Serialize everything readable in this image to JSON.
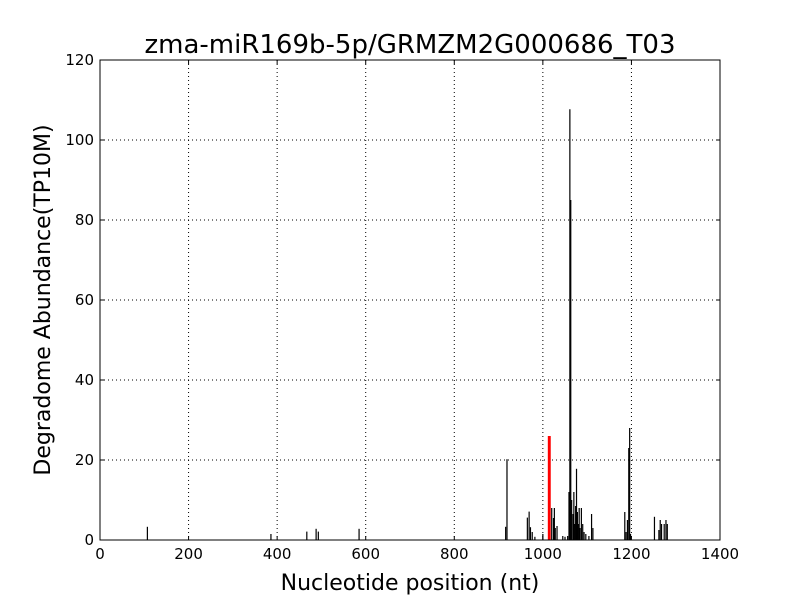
{
  "chart_data": {
    "type": "bar",
    "title": "zma-miR169b-5p/GRMZM2G000686_T03",
    "xlabel": "Nucleotide position (nt)",
    "ylabel": "Degradome Abundance(TP10M)",
    "xlim": [
      0,
      1400
    ],
    "ylim": [
      0,
      120
    ],
    "xticks": [
      0,
      200,
      400,
      600,
      800,
      1000,
      1200,
      1400
    ],
    "yticks": [
      0,
      20,
      40,
      60,
      80,
      100,
      120
    ],
    "grid": true,
    "colors": {
      "bars": "#000000",
      "highlight": "#ff0000",
      "grid": "#000000"
    },
    "series": [
      {
        "points": [
          [
            107,
            3.3
          ],
          [
            386,
            1.5
          ],
          [
            467,
            2.1
          ],
          [
            488,
            2.8
          ],
          [
            493,
            2.1
          ],
          [
            585,
            2.8
          ],
          [
            916,
            3.3
          ],
          [
            919,
            20.2
          ],
          [
            965,
            5.6
          ],
          [
            969,
            7.1
          ],
          [
            972,
            3.2
          ],
          [
            976,
            2.0
          ],
          [
            982,
            0.8
          ],
          [
            1000,
            1.5
          ],
          [
            1020,
            8.0
          ],
          [
            1024,
            5.5
          ],
          [
            1026,
            8.0
          ],
          [
            1028,
            3.0
          ],
          [
            1032,
            3.5
          ],
          [
            1045,
            1.0
          ],
          [
            1050,
            0.8
          ],
          [
            1056,
            1.0
          ],
          [
            1059,
            12.0
          ],
          [
            1061,
            107.7
          ],
          [
            1063,
            85.0
          ],
          [
            1065,
            10.0
          ],
          [
            1068,
            6.5
          ],
          [
            1070,
            12.0
          ],
          [
            1072,
            4.0
          ],
          [
            1074,
            8.5
          ],
          [
            1076,
            17.8
          ],
          [
            1078,
            7.0
          ],
          [
            1080,
            4.0
          ],
          [
            1082,
            8.0
          ],
          [
            1084,
            3.0
          ],
          [
            1087,
            8.0
          ],
          [
            1090,
            4.0
          ],
          [
            1093,
            2.0
          ],
          [
            1097,
            1.5
          ],
          [
            1104,
            1.0
          ],
          [
            1110,
            6.5
          ],
          [
            1113,
            3.0
          ],
          [
            1185,
            7.0
          ],
          [
            1188,
            2.0
          ],
          [
            1191,
            5.0
          ],
          [
            1194,
            23.0
          ],
          [
            1196,
            28.0
          ],
          [
            1198,
            1.5
          ],
          [
            1252,
            5.8
          ],
          [
            1262,
            2.5
          ],
          [
            1265,
            5.0
          ],
          [
            1268,
            4.0
          ],
          [
            1274,
            4.0
          ],
          [
            1278,
            5.0
          ],
          [
            1281,
            4.0
          ]
        ]
      },
      {
        "highlight": true,
        "points": [
          [
            1013,
            26.0
          ],
          [
            1014,
            26.0
          ],
          [
            1015,
            26.0
          ],
          [
            1016,
            26.0
          ]
        ]
      }
    ]
  }
}
